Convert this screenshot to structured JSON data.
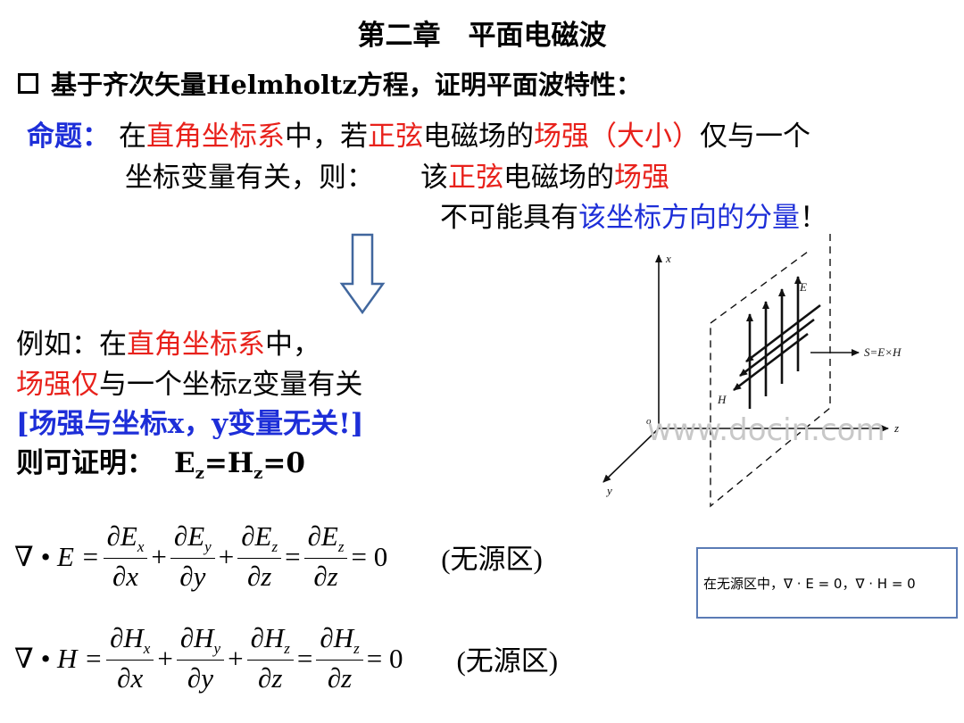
{
  "title": "第二章　平面电磁波",
  "heading": "基于齐次矢量Helmholtz方程，证明平面波特性：",
  "proposition": {
    "label": "命题：",
    "l1_a": "在",
    "l1_b": "直角坐标系",
    "l1_c": "中，若",
    "l1_d": "正弦",
    "l1_e": "电磁场的",
    "l1_f": "场强（大小）",
    "l1_g": "仅与一个",
    "l2_a": "坐标变量有关，则：",
    "l2_b": "该",
    "l2_c": "正弦",
    "l2_d": "电磁场的",
    "l2_e": "场强",
    "l3_a": "不可能具有",
    "l3_b": "该坐标方向的分量",
    "l3_c": "！"
  },
  "example": {
    "l1_a": "例如：在",
    "l1_b": "直角坐标系",
    "l1_c": "中，",
    "l2_a": "场强仅",
    "l2_b": "与一个坐标z变量有关",
    "l3": "[场强与坐标x，y变量无关!]",
    "l4_a": "则可证明：",
    "l4_b": "E",
    "l4_sub1": "z",
    "l4_c": "=H",
    "l4_sub2": "z",
    "l4_d": "=0"
  },
  "equations": {
    "e_lhs": "∇ • E =",
    "e_n1": "∂E",
    "e_s1": "x",
    "e_d1": "∂x",
    "e_n2": "∂E",
    "e_s2": "y",
    "e_d2": "∂y",
    "e_n3": "∂E",
    "e_s3": "z",
    "e_d3": "∂z",
    "e_n4": "∂E",
    "e_s4": "z",
    "e_d4": "∂z",
    "e_rhs": "= 0",
    "e_note": "(无源区)",
    "h_lhs": "∇ • H =",
    "h_n1": "∂H",
    "h_s1": "x",
    "h_d1": "∂x",
    "h_n2": "∂H",
    "h_s2": "y",
    "h_d2": "∂y",
    "h_n3": "∂H",
    "h_s3": "z",
    "h_d3": "∂z",
    "h_n4": "∂H",
    "h_s4": "z",
    "h_d4": "∂z",
    "h_rhs": "= 0",
    "h_note": "(无源区)",
    "plus": "+",
    "eq": "="
  },
  "figure": {
    "x_label": "x",
    "y_label": "y",
    "z_label": "z",
    "o_label": "o",
    "e_label": "E",
    "h_label": "H",
    "s_label": "S=E×H"
  },
  "side_note": "在无源区中，∇ · E = 0，∇ · H = 0",
  "watermark": "www.docin.com"
}
